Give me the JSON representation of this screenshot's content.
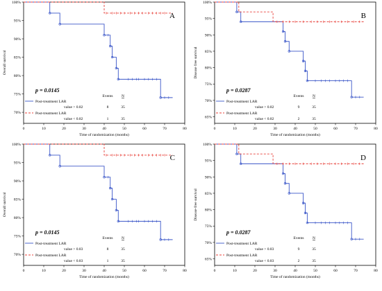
{
  "colors": {
    "blue": "#3a56c8",
    "red": "#e8403a",
    "frame": "#000000"
  },
  "chart_data": [
    {
      "type": "line",
      "step": true,
      "panel_label": "A",
      "title": "",
      "xlabel": "Time of randomization (months)",
      "ylabel": "Overall survival",
      "xlim": [
        0,
        80
      ],
      "ylim": [
        67,
        100
      ],
      "xticks": [
        0,
        10,
        20,
        30,
        40,
        50,
        60,
        70,
        80
      ],
      "yticks": [
        {
          "v": 70,
          "t": "70%"
        },
        {
          "v": 75,
          "t": "75%"
        },
        {
          "v": 80,
          "t": "80%"
        },
        {
          "v": 85,
          "t": "85%"
        },
        {
          "v": 90,
          "t": "90%"
        },
        {
          "v": 95,
          "t": "95%"
        },
        {
          "v": 100,
          "t": "100%"
        }
      ],
      "p_text": "p = 0.0145",
      "legend": {
        "events_header": "Events",
        "n_header": "N",
        "rows": [
          {
            "line1": "Post-treatment LAR",
            "line2": "value > 0.82",
            "events": "8",
            "n": "35"
          },
          {
            "line1": "Post-treatment LAR",
            "line2": "value < 0.82",
            "events": "1",
            "n": "35"
          }
        ]
      },
      "series": [
        {
          "color": "blue",
          "dashed": false,
          "steps": [
            [
              0,
              100
            ],
            [
              13,
              97
            ],
            [
              18,
              94
            ],
            [
              40,
              91
            ],
            [
              43,
              88
            ],
            [
              44,
              85
            ],
            [
              46,
              82
            ],
            [
              47,
              79
            ],
            [
              68,
              74
            ],
            [
              74,
              74
            ]
          ],
          "censors": [
            [
              42,
              91
            ],
            [
              52,
              79
            ],
            [
              54,
              79
            ],
            [
              56,
              79
            ],
            [
              57,
              79
            ],
            [
              60,
              79
            ],
            [
              62,
              79
            ],
            [
              64,
              79
            ],
            [
              66,
              79
            ],
            [
              70,
              74
            ],
            [
              72,
              74
            ]
          ]
        },
        {
          "color": "red",
          "dashed": true,
          "steps": [
            [
              0,
              100
            ],
            [
              40,
              97
            ],
            [
              74,
              97
            ]
          ],
          "censors": [
            [
              41,
              97
            ],
            [
              44,
              97
            ],
            [
              46,
              97
            ],
            [
              48,
              97
            ],
            [
              50,
              97
            ],
            [
              53,
              97
            ],
            [
              55,
              97
            ],
            [
              57,
              97
            ],
            [
              59,
              97
            ],
            [
              62,
              97
            ],
            [
              64,
              97
            ],
            [
              66,
              97
            ],
            [
              68,
              97
            ],
            [
              70,
              97
            ]
          ]
        }
      ]
    },
    {
      "type": "line",
      "step": true,
      "panel_label": "B",
      "title": "",
      "xlabel": "Time of randomization (months)",
      "ylabel": "Disease free survival",
      "xlim": [
        0,
        80
      ],
      "ylim": [
        63,
        100
      ],
      "xticks": [
        0,
        10,
        20,
        30,
        40,
        50,
        60,
        70,
        80
      ],
      "yticks": [
        {
          "v": 65,
          "t": "65%"
        },
        {
          "v": 70,
          "t": "70%"
        },
        {
          "v": 75,
          "t": "75%"
        },
        {
          "v": 80,
          "t": "80%"
        },
        {
          "v": 85,
          "t": "85%"
        },
        {
          "v": 90,
          "t": "90%"
        },
        {
          "v": 95,
          "t": "95%"
        },
        {
          "v": 100,
          "t": "100%"
        }
      ],
      "p_text": "p = 0.0287",
      "legend": {
        "events_header": "Events",
        "n_header": "N",
        "rows": [
          {
            "line1": "Post-treatment LAR",
            "line2": "value > 0.82",
            "events": "9",
            "n": "35"
          },
          {
            "line1": "Post-treatment LAR",
            "line2": "value < 0.82",
            "events": "2",
            "n": "35"
          }
        ]
      },
      "series": [
        {
          "color": "blue",
          "dashed": false,
          "steps": [
            [
              0,
              100
            ],
            [
              11,
              97
            ],
            [
              13,
              94
            ],
            [
              34,
              91
            ],
            [
              35,
              88
            ],
            [
              37,
              85
            ],
            [
              44,
              82
            ],
            [
              45,
              79
            ],
            [
              46,
              76
            ],
            [
              68,
              71
            ],
            [
              74,
              71
            ]
          ],
          "censors": [
            [
              44,
              82
            ],
            [
              45,
              79
            ],
            [
              50,
              76
            ],
            [
              53,
              76
            ],
            [
              55,
              76
            ],
            [
              57,
              76
            ],
            [
              60,
              76
            ],
            [
              62,
              76
            ],
            [
              64,
              76
            ],
            [
              66,
              76
            ],
            [
              70,
              71
            ],
            [
              72,
              71
            ]
          ]
        },
        {
          "color": "red",
          "dashed": true,
          "steps": [
            [
              0,
              100
            ],
            [
              12,
              97
            ],
            [
              29,
              94
            ],
            [
              74,
              94
            ]
          ],
          "censors": [
            [
              31,
              94
            ],
            [
              34,
              94
            ],
            [
              37,
              94
            ],
            [
              40,
              94
            ],
            [
              44,
              94
            ],
            [
              48,
              94
            ],
            [
              51,
              94
            ],
            [
              54,
              94
            ],
            [
              57,
              94
            ],
            [
              60,
              94
            ],
            [
              63,
              94
            ],
            [
              66,
              94
            ],
            [
              69,
              94
            ],
            [
              72,
              94
            ]
          ]
        }
      ]
    },
    {
      "type": "line",
      "step": true,
      "panel_label": "C",
      "title": "",
      "xlabel": "Time of randomization (months)",
      "ylabel": "Overall survival",
      "xlim": [
        0,
        80
      ],
      "ylim": [
        67,
        100
      ],
      "xticks": [
        0,
        10,
        20,
        30,
        40,
        50,
        60,
        70,
        80
      ],
      "yticks": [
        {
          "v": 70,
          "t": "70%"
        },
        {
          "v": 75,
          "t": "75%"
        },
        {
          "v": 80,
          "t": "80%"
        },
        {
          "v": 85,
          "t": "85%"
        },
        {
          "v": 90,
          "t": "90%"
        },
        {
          "v": 95,
          "t": "95%"
        },
        {
          "v": 100,
          "t": "100%"
        }
      ],
      "p_text": "p = 0.0145",
      "legend": {
        "events_header": "Events",
        "n_header": "N",
        "rows": [
          {
            "line1": "Post-treatment LAR",
            "line2": "value > 0.83",
            "events": "8",
            "n": "35"
          },
          {
            "line1": "Post-treatment LAR",
            "line2": "value < 0.83",
            "events": "1",
            "n": "35"
          }
        ]
      },
      "series": [
        {
          "color": "blue",
          "dashed": false,
          "steps": [
            [
              0,
              100
            ],
            [
              13,
              97
            ],
            [
              18,
              94
            ],
            [
              40,
              91
            ],
            [
              43,
              88
            ],
            [
              44,
              85
            ],
            [
              46,
              82
            ],
            [
              47,
              79
            ],
            [
              68,
              74
            ],
            [
              74,
              74
            ]
          ],
          "censors": [
            [
              42,
              91
            ],
            [
              52,
              79
            ],
            [
              54,
              79
            ],
            [
              56,
              79
            ],
            [
              57,
              79
            ],
            [
              60,
              79
            ],
            [
              62,
              79
            ],
            [
              64,
              79
            ],
            [
              66,
              79
            ],
            [
              70,
              74
            ],
            [
              72,
              74
            ]
          ]
        },
        {
          "color": "red",
          "dashed": true,
          "steps": [
            [
              0,
              100
            ],
            [
              40,
              97
            ],
            [
              74,
              97
            ]
          ],
          "censors": [
            [
              41,
              97
            ],
            [
              44,
              97
            ],
            [
              46,
              97
            ],
            [
              48,
              97
            ],
            [
              50,
              97
            ],
            [
              53,
              97
            ],
            [
              55,
              97
            ],
            [
              57,
              97
            ],
            [
              59,
              97
            ],
            [
              62,
              97
            ],
            [
              64,
              97
            ],
            [
              66,
              97
            ],
            [
              68,
              97
            ],
            [
              70,
              97
            ]
          ]
        }
      ]
    },
    {
      "type": "line",
      "step": true,
      "panel_label": "D",
      "title": "",
      "xlabel": "Time of randomization (months)",
      "ylabel": "Disease-free survival",
      "xlim": [
        0,
        80
      ],
      "ylim": [
        63,
        100
      ],
      "xticks": [
        0,
        10,
        20,
        30,
        40,
        50,
        60,
        70,
        80
      ],
      "yticks": [
        {
          "v": 65,
          "t": "65%"
        },
        {
          "v": 70,
          "t": "70%"
        },
        {
          "v": 75,
          "t": "75%"
        },
        {
          "v": 80,
          "t": "80%"
        },
        {
          "v": 85,
          "t": "85%"
        },
        {
          "v": 90,
          "t": "90%"
        },
        {
          "v": 95,
          "t": "95%"
        },
        {
          "v": 100,
          "t": "100%"
        }
      ],
      "p_text": "p = 0.0287",
      "legend": {
        "events_header": "Events",
        "n_header": "N",
        "rows": [
          {
            "line1": "Post-treatment LAR",
            "line2": "value > 0.83",
            "events": "9",
            "n": "35"
          },
          {
            "line1": "Post-treatment LAR",
            "line2": "value < 0.83",
            "events": "2",
            "n": "35"
          }
        ]
      },
      "series": [
        {
          "color": "blue",
          "dashed": false,
          "steps": [
            [
              0,
              100
            ],
            [
              11,
              97
            ],
            [
              13,
              94
            ],
            [
              34,
              91
            ],
            [
              35,
              88
            ],
            [
              37,
              85
            ],
            [
              44,
              82
            ],
            [
              45,
              79
            ],
            [
              46,
              76
            ],
            [
              68,
              71
            ],
            [
              74,
              71
            ]
          ],
          "censors": [
            [
              44,
              82
            ],
            [
              45,
              79
            ],
            [
              50,
              76
            ],
            [
              53,
              76
            ],
            [
              55,
              76
            ],
            [
              57,
              76
            ],
            [
              60,
              76
            ],
            [
              62,
              76
            ],
            [
              64,
              76
            ],
            [
              66,
              76
            ],
            [
              70,
              71
            ],
            [
              72,
              71
            ]
          ]
        },
        {
          "color": "red",
          "dashed": true,
          "steps": [
            [
              0,
              100
            ],
            [
              12,
              97
            ],
            [
              29,
              94
            ],
            [
              74,
              94
            ]
          ],
          "censors": [
            [
              31,
              94
            ],
            [
              34,
              94
            ],
            [
              37,
              94
            ],
            [
              40,
              94
            ],
            [
              44,
              94
            ],
            [
              48,
              94
            ],
            [
              51,
              94
            ],
            [
              54,
              94
            ],
            [
              57,
              94
            ],
            [
              60,
              94
            ],
            [
              63,
              94
            ],
            [
              66,
              94
            ],
            [
              69,
              94
            ],
            [
              72,
              94
            ]
          ]
        }
      ]
    }
  ]
}
